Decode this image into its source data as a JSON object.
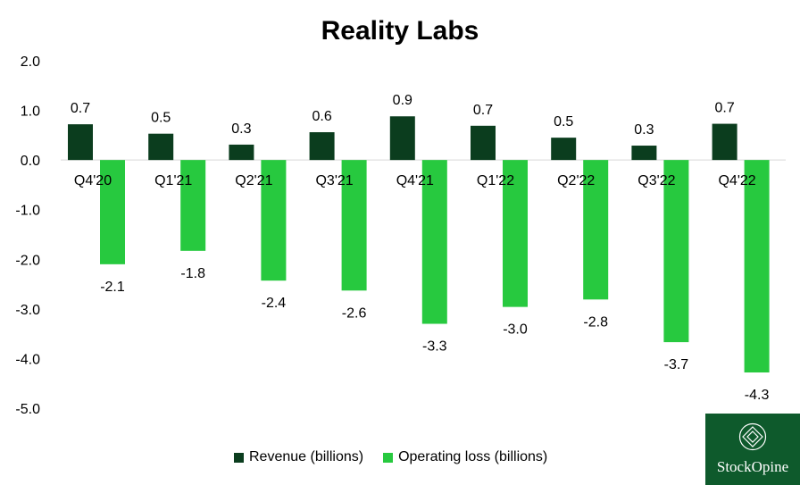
{
  "chart_data": {
    "type": "bar",
    "title": "Reality Labs",
    "categories": [
      "Q4'20",
      "Q1'21",
      "Q2'21",
      "Q3'21",
      "Q4'21",
      "Q1'22",
      "Q2'22",
      "Q3'22",
      "Q4'22"
    ],
    "series": [
      {
        "name": "Revenue (billions)",
        "values": [
          0.7,
          0.5,
          0.3,
          0.6,
          0.9,
          0.7,
          0.5,
          0.3,
          0.7
        ],
        "color": "#0b3d1e"
      },
      {
        "name": "Operating loss (billions)",
        "values": [
          -2.1,
          -1.8,
          -2.4,
          -2.6,
          -3.3,
          -3.0,
          -2.8,
          -3.7,
          -4.3
        ],
        "color": "#27c93f"
      }
    ],
    "bar_actual": {
      "revenue": [
        0.72,
        0.53,
        0.31,
        0.56,
        0.88,
        0.69,
        0.45,
        0.29,
        0.73
      ],
      "loss": [
        -2.1,
        -1.83,
        -2.43,
        -2.63,
        -3.3,
        -2.96,
        -2.81,
        -3.67,
        -4.28
      ]
    },
    "ylim": [
      -5.0,
      2.0
    ],
    "yticks": [
      "2.0",
      "1.0",
      "0.0",
      "-1.0",
      "-2.0",
      "-3.0",
      "-4.0",
      "-5.0"
    ],
    "revenue_labels": [
      "0.7",
      "0.5",
      "0.3",
      "0.6",
      "0.9",
      "0.7",
      "0.5",
      "0.3",
      "0.7"
    ],
    "loss_labels": [
      "-2.1",
      "-1.8",
      "-2.4",
      "-2.6",
      "-3.3",
      "-3.0",
      "-2.8",
      "-3.7",
      "-4.3"
    ],
    "grid": false,
    "legend_position": "bottom"
  },
  "logo": {
    "name": "StockOpine",
    "color": "#0e5a2c"
  }
}
